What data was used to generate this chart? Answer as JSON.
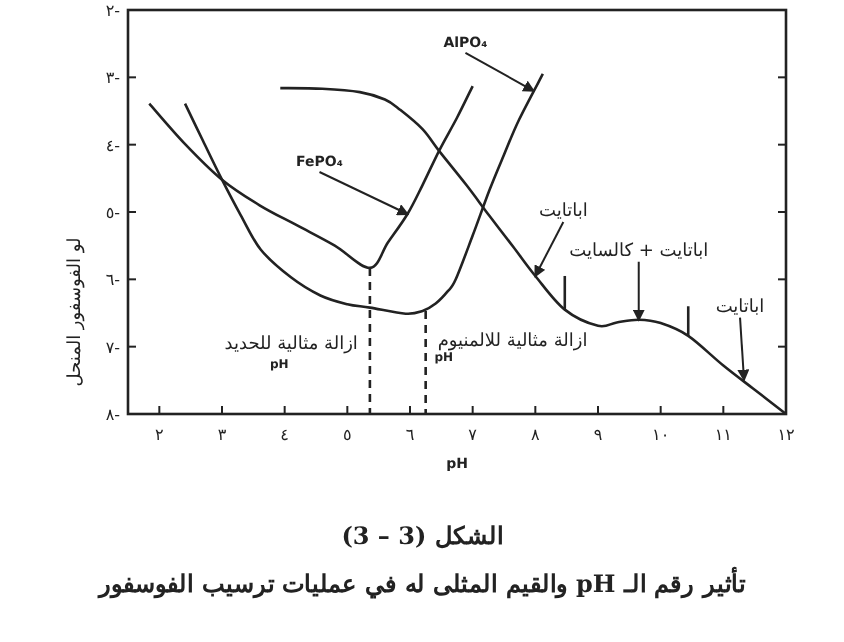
{
  "chart_data": {
    "type": "line",
    "title": "الشكل (3 – 3)",
    "subtitle": "تأثير رقم الـ pH والقيم المثلى له في عمليات ترسيب الفوسفور",
    "xlabel": "pH",
    "ylabel": "لو الفوسفور المنحل",
    "xlim": [
      1.5,
      12
    ],
    "ylim": [
      -8,
      -2
    ],
    "xticks": [
      {
        "value": 2,
        "label": "٢"
      },
      {
        "value": 3,
        "label": "٣"
      },
      {
        "value": 4,
        "label": "٤"
      },
      {
        "value": 5,
        "label": "٥"
      },
      {
        "value": 6,
        "label": "٦"
      },
      {
        "value": 7,
        "label": "٧"
      },
      {
        "value": 8,
        "label": "٨"
      },
      {
        "value": 9,
        "label": "٩"
      },
      {
        "value": 10,
        "label": "١٠"
      },
      {
        "value": 11,
        "label": "١١"
      },
      {
        "value": 12,
        "label": "١٢"
      }
    ],
    "yticks": [
      {
        "value": -2,
        "label": "٢-"
      },
      {
        "value": -3,
        "label": "٣-"
      },
      {
        "value": -4,
        "label": "٤-"
      },
      {
        "value": -5,
        "label": "٥-"
      },
      {
        "value": -6,
        "label": "٦-"
      },
      {
        "value": -7,
        "label": "٧-"
      },
      {
        "value": -8,
        "label": "٨-"
      }
    ],
    "grid": false,
    "marker": "none",
    "series": [
      {
        "color": "#222222",
        "x": [
          1.84,
          2.4,
          3.0,
          3.6,
          4.2,
          4.8,
          5.36,
          5.65,
          5.96,
          6.2,
          6.47,
          6.75,
          7.0
        ],
        "values": [
          -3.39,
          -3.98,
          -4.52,
          -4.9,
          -5.2,
          -5.5,
          -5.83,
          -5.45,
          -5.03,
          -4.6,
          -4.08,
          -3.6,
          -3.13
        ]
      },
      {
        "color": "#222222",
        "x": [
          2.41,
          2.7,
          3.0,
          3.3,
          3.62,
          4.1,
          4.57,
          5.0,
          5.36,
          5.93,
          6.2,
          6.41,
          6.6,
          6.73,
          7.0,
          7.27,
          7.5,
          7.74,
          8.12
        ],
        "values": [
          -3.39,
          -3.95,
          -4.52,
          -5.05,
          -5.56,
          -5.97,
          -6.24,
          -6.37,
          -6.42,
          -6.51,
          -6.47,
          -6.36,
          -6.18,
          -6.0,
          -5.35,
          -4.67,
          -4.15,
          -3.63,
          -2.95
        ]
      },
      {
        "color": "#222222",
        "x": [
          3.93,
          4.6,
          5.2,
          5.6,
          5.84,
          6.2,
          6.47,
          6.9,
          7.27,
          7.65,
          8.0,
          8.47,
          9.0,
          9.3,
          9.65,
          10.0,
          10.44,
          11.0,
          11.5,
          12.0
        ],
        "values": [
          -3.16,
          -3.17,
          -3.22,
          -3.33,
          -3.48,
          -3.77,
          -4.1,
          -4.6,
          -5.06,
          -5.52,
          -5.95,
          -6.45,
          -6.69,
          -6.64,
          -6.6,
          -6.65,
          -6.84,
          -7.28,
          -7.64,
          -8.0
        ]
      },
      {
        "color": "#222222",
        "line_style": "dashed",
        "x": [
          5.36,
          5.36
        ],
        "values": [
          -5.83,
          -8
        ]
      },
      {
        "color": "#222222",
        "line_style": "dashed",
        "x": [
          6.25,
          6.25
        ],
        "values": [
          -6.47,
          -8
        ]
      },
      {
        "color": "#222222",
        "x": [
          8.47,
          8.47
        ],
        "values": [
          -5.95,
          -6.45
        ]
      },
      {
        "color": "#222222",
        "x": [
          10.44,
          10.44
        ],
        "values": [
          -6.4,
          -6.84
        ]
      }
    ],
    "annotations": [
      {
        "text": "FePO₄",
        "x": 5.96,
        "y": -5.03
      },
      {
        "text": "AlPO₄",
        "x": 7.97,
        "y": -3.2
      },
      {
        "text": "اباتايت",
        "x": 8.0,
        "y": -5.95
      },
      {
        "text": "اباتايت + كالسايت",
        "x": 9.65,
        "y": -6.6
      },
      {
        "text": "اباتايت",
        "x": 11.33,
        "y": -7.49
      },
      {
        "text": "ازالة مثالية للحديد",
        "x": 5.36,
        "y": -6.95
      },
      "pH",
      {
        "text": "ازالة مثالية للالمنيوم",
        "x": 6.25,
        "y": -6.9
      },
      "pH"
    ]
  }
}
